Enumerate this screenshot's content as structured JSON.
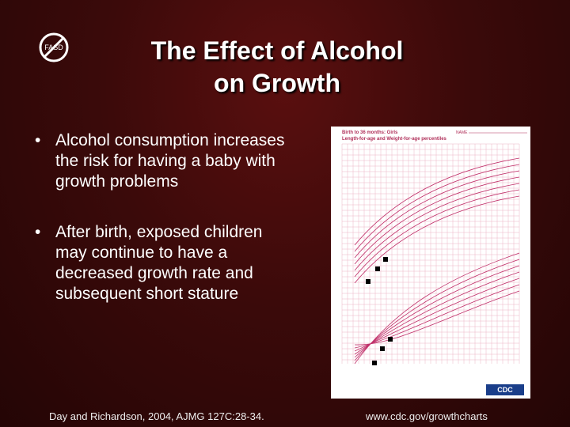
{
  "logo": {
    "text": "FASD",
    "icon": "no-symbol-icon"
  },
  "title": {
    "line1": "The Effect of Alcohol",
    "line2": "on Growth"
  },
  "bullets": [
    "Alcohol consumption increases the risk for having a baby with growth problems",
    "After birth, exposed children may continue to have a decreased growth rate and subsequent short stature"
  ],
  "chart": {
    "heading1": "Birth to 36 months: Girls",
    "heading2": "Length-for-age and Weight-for-age percentiles",
    "name_label": "NAME",
    "cdc": "CDC"
  },
  "footer": {
    "citation": "Day and Richardson, 2004, AJMG 127C:28-34.",
    "url": "www.cdc.gov/growthcharts"
  }
}
